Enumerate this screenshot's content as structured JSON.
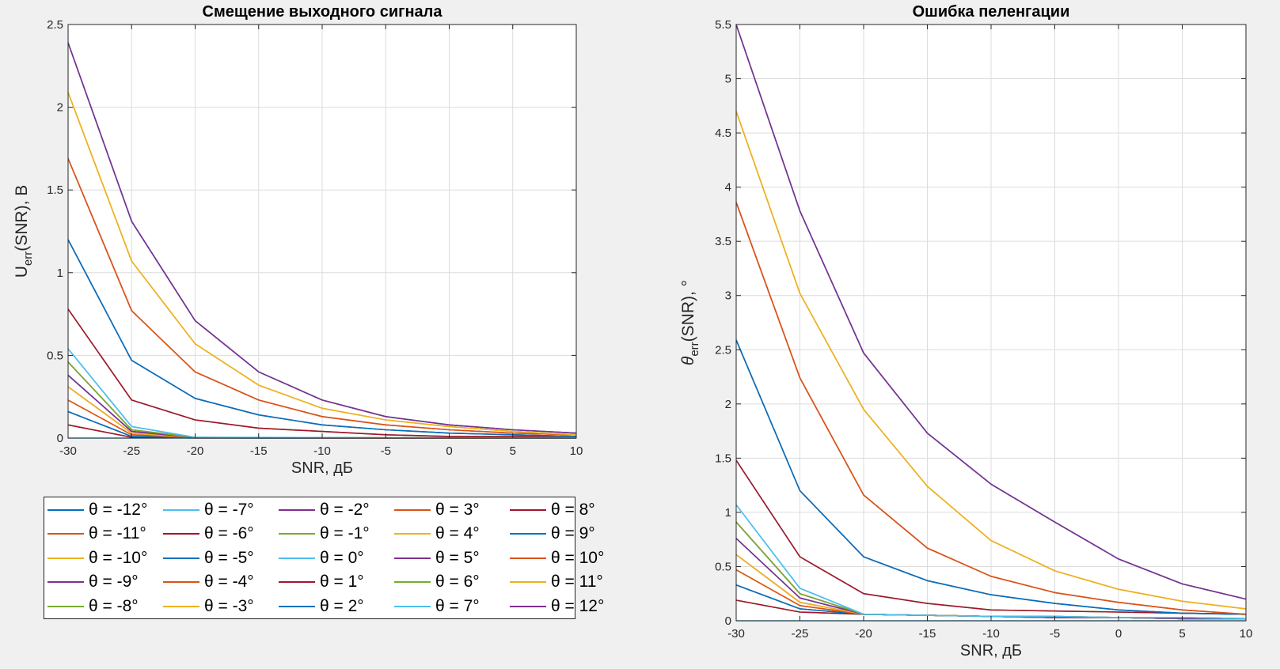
{
  "figure": {
    "series_labels": [
      "θ = -12°",
      "θ = -11°",
      "θ = -10°",
      "θ = -9°",
      "θ = -8°",
      "θ = -7°",
      "θ = -6°",
      "θ = -5°",
      "θ = -4°",
      "θ = -3°",
      "θ = -2°",
      "θ = -1°",
      "θ = 0°",
      "θ = 1°",
      "θ = 2°",
      "θ = 3°",
      "θ = 4°",
      "θ = 5°",
      "θ = 6°",
      "θ = 7°",
      "θ = 8°",
      "θ = 9°",
      "θ = 10°",
      "θ = 11°",
      "θ = 12°"
    ],
    "series_colors": [
      "#0072BD",
      "#D95319",
      "#EDB120",
      "#7E2F8E",
      "#77AC30",
      "#4DBEEE",
      "#A2142F",
      "#0072BD",
      "#D95319",
      "#EDB120",
      "#7E2F8E",
      "#77AC30",
      "#4DBEEE",
      "#A2142F",
      "#0072BD",
      "#D95319",
      "#EDB120",
      "#7E2F8E",
      "#77AC30",
      "#4DBEEE",
      "#A2142F",
      "#0072BD",
      "#D95319",
      "#EDB120",
      "#7E2F8E"
    ]
  },
  "chart_data": [
    {
      "type": "line",
      "title": "Смещение выходного сигнала",
      "xlabel": "SNR, дБ",
      "ylabel_main": "U",
      "ylabel_sub": "err",
      "ylabel_rest": "(SNR), В",
      "x": [
        -30,
        -25,
        -20,
        -15,
        -10,
        -5,
        0,
        5,
        10
      ],
      "xlim": [
        -30,
        10
      ],
      "ylim": [
        0,
        2.5
      ],
      "xticks": [
        "-30",
        "-25",
        "-20",
        "-15",
        "-10",
        "-5",
        "0",
        "5",
        "10"
      ],
      "yticks": [
        "0",
        "0.5",
        "1",
        "1.5",
        "2",
        "2.5"
      ],
      "grid": true,
      "series": [
        {
          "name": "θ = -12°",
          "values": [
            2.39,
            1.31,
            0.71,
            0.4,
            0.23,
            0.13,
            0.08,
            0.05,
            0.03
          ]
        },
        {
          "name": "θ = -11°",
          "values": [
            1.69,
            0.77,
            0.4,
            0.23,
            0.13,
            0.08,
            0.05,
            0.03,
            0.02
          ]
        },
        {
          "name": "θ = -10°",
          "values": [
            2.09,
            1.07,
            0.57,
            0.32,
            0.18,
            0.11,
            0.07,
            0.04,
            0.02
          ]
        },
        {
          "name": "θ = -9°",
          "values": [
            1.2,
            0.47,
            0.24,
            0.14,
            0.08,
            0.05,
            0.03,
            0.02,
            0.01
          ]
        },
        {
          "name": "θ = -8°",
          "values": [
            0.78,
            0.23,
            0.11,
            0.06,
            0.04,
            0.02,
            0.01,
            0.01,
            0.01
          ]
        },
        {
          "name": "θ = -7°",
          "values": [
            0.54,
            0.07,
            0.005,
            0.004,
            0.003,
            0.002,
            0.002,
            0.001,
            0.001
          ]
        },
        {
          "name": "θ = -6°",
          "values": [
            0.46,
            0.05,
            0.004,
            0.003,
            0.002,
            0.002,
            0.001,
            0.001,
            0.001
          ]
        },
        {
          "name": "θ = -5°",
          "values": [
            0.38,
            0.04,
            0.003,
            0.003,
            0.002,
            0.001,
            0.001,
            0.001,
            0.001
          ]
        },
        {
          "name": "θ = -4°",
          "values": [
            0.31,
            0.03,
            0.003,
            0.002,
            0.002,
            0.001,
            0.001,
            0.001,
            0.001
          ]
        },
        {
          "name": "θ = -3°",
          "values": [
            0.23,
            0.02,
            0.002,
            0.002,
            0.001,
            0.001,
            0.001,
            0.001,
            0.001
          ]
        },
        {
          "name": "θ = -2°",
          "values": [
            0.16,
            0.01,
            0.002,
            0.001,
            0.001,
            0.001,
            0.001,
            0.001,
            0.001
          ]
        },
        {
          "name": "θ = -1°",
          "values": [
            0.08,
            0.005,
            0.001,
            0.001,
            0.001,
            0.001,
            0.001,
            0.001,
            0.001
          ]
        },
        {
          "name": "θ = 0°",
          "values": [
            0,
            0,
            0,
            0,
            0,
            0,
            0,
            0,
            0
          ]
        },
        {
          "name": "θ = 1°",
          "values": [
            0.08,
            0.005,
            0.001,
            0.001,
            0.001,
            0.001,
            0.001,
            0.001,
            0.001
          ]
        },
        {
          "name": "θ = 2°",
          "values": [
            0.16,
            0.01,
            0.002,
            0.001,
            0.001,
            0.001,
            0.001,
            0.001,
            0.001
          ]
        },
        {
          "name": "θ = 3°",
          "values": [
            0.23,
            0.02,
            0.002,
            0.002,
            0.001,
            0.001,
            0.001,
            0.001,
            0.001
          ]
        },
        {
          "name": "θ = 4°",
          "values": [
            0.31,
            0.03,
            0.003,
            0.002,
            0.002,
            0.001,
            0.001,
            0.001,
            0.001
          ]
        },
        {
          "name": "θ = 5°",
          "values": [
            0.38,
            0.04,
            0.003,
            0.003,
            0.002,
            0.001,
            0.001,
            0.001,
            0.001
          ]
        },
        {
          "name": "θ = 6°",
          "values": [
            0.46,
            0.05,
            0.004,
            0.003,
            0.002,
            0.002,
            0.001,
            0.001,
            0.001
          ]
        },
        {
          "name": "θ = 7°",
          "values": [
            0.54,
            0.07,
            0.005,
            0.004,
            0.003,
            0.002,
            0.002,
            0.001,
            0.001
          ]
        },
        {
          "name": "θ = 8°",
          "values": [
            0.78,
            0.23,
            0.11,
            0.06,
            0.04,
            0.02,
            0.01,
            0.01,
            0.01
          ]
        },
        {
          "name": "θ = 9°",
          "values": [
            1.2,
            0.47,
            0.24,
            0.14,
            0.08,
            0.05,
            0.03,
            0.02,
            0.01
          ]
        },
        {
          "name": "θ = 10°",
          "values": [
            1.69,
            0.77,
            0.4,
            0.23,
            0.13,
            0.08,
            0.05,
            0.03,
            0.02
          ]
        },
        {
          "name": "θ = 11°",
          "values": [
            2.09,
            1.07,
            0.57,
            0.32,
            0.18,
            0.11,
            0.07,
            0.04,
            0.02
          ]
        },
        {
          "name": "θ = 12°",
          "values": [
            2.39,
            1.31,
            0.71,
            0.4,
            0.23,
            0.13,
            0.08,
            0.05,
            0.03
          ]
        }
      ]
    },
    {
      "type": "line",
      "title": "Ошибка пеленгации",
      "xlabel": "SNR, дБ",
      "ylabel_main": "θ",
      "ylabel_sub": "err",
      "ylabel_rest": "(SNR), °",
      "x": [
        -30,
        -25,
        -20,
        -15,
        -10,
        -5,
        0,
        5,
        10
      ],
      "xlim": [
        -30,
        10
      ],
      "ylim": [
        0,
        5.5
      ],
      "xticks": [
        "-30",
        "-25",
        "-20",
        "-15",
        "-10",
        "-5",
        "0",
        "5",
        "10"
      ],
      "yticks": [
        "0",
        "0.5",
        "1",
        "1.5",
        "2",
        "2.5",
        "3",
        "3.5",
        "4",
        "4.5",
        "5",
        "5.5"
      ],
      "grid": true,
      "series": [
        {
          "name": "θ = -12°",
          "values": [
            5.5,
            3.78,
            2.47,
            1.73,
            1.26,
            0.91,
            0.57,
            0.34,
            0.2
          ]
        },
        {
          "name": "θ = -11°",
          "values": [
            3.86,
            2.24,
            1.16,
            0.67,
            0.41,
            0.26,
            0.17,
            0.1,
            0.06
          ]
        },
        {
          "name": "θ = -10°",
          "values": [
            4.7,
            3.02,
            1.95,
            1.24,
            0.74,
            0.46,
            0.29,
            0.18,
            0.11
          ]
        },
        {
          "name": "θ = -9°",
          "values": [
            2.59,
            1.2,
            0.59,
            0.37,
            0.24,
            0.16,
            0.1,
            0.07,
            0.06
          ]
        },
        {
          "name": "θ = -8°",
          "values": [
            1.48,
            0.59,
            0.25,
            0.16,
            0.1,
            0.09,
            0.08,
            0.07,
            0.06
          ]
        },
        {
          "name": "θ = -7°",
          "values": [
            1.07,
            0.3,
            0.06,
            0.05,
            0.04,
            0.04,
            0.03,
            0.03,
            0.02
          ]
        },
        {
          "name": "θ = -6°",
          "values": [
            0.91,
            0.25,
            0.06,
            0.05,
            0.04,
            0.04,
            0.03,
            0.03,
            0.02
          ]
        },
        {
          "name": "θ = -5°",
          "values": [
            0.76,
            0.21,
            0.06,
            0.05,
            0.04,
            0.03,
            0.03,
            0.02,
            0.02
          ]
        },
        {
          "name": "θ = -4°",
          "values": [
            0.61,
            0.17,
            0.06,
            0.05,
            0.04,
            0.03,
            0.03,
            0.02,
            0.02
          ]
        },
        {
          "name": "θ = -3°",
          "values": [
            0.47,
            0.14,
            0.06,
            0.05,
            0.04,
            0.03,
            0.03,
            0.02,
            0.02
          ]
        },
        {
          "name": "θ = -2°",
          "values": [
            0.33,
            0.11,
            0.06,
            0.05,
            0.04,
            0.03,
            0.03,
            0.02,
            0.02
          ]
        },
        {
          "name": "θ = -1°",
          "values": [
            0.19,
            0.08,
            0.06,
            0.05,
            0.04,
            0.03,
            0.03,
            0.02,
            0.02
          ]
        },
        {
          "name": "θ = 0°",
          "values": [
            0,
            0,
            0,
            0,
            0,
            0,
            0,
            0,
            0
          ]
        },
        {
          "name": "θ = 1°",
          "values": [
            0.19,
            0.08,
            0.06,
            0.05,
            0.04,
            0.03,
            0.03,
            0.02,
            0.02
          ]
        },
        {
          "name": "θ = 2°",
          "values": [
            0.33,
            0.11,
            0.06,
            0.05,
            0.04,
            0.03,
            0.03,
            0.02,
            0.02
          ]
        },
        {
          "name": "θ = 3°",
          "values": [
            0.47,
            0.14,
            0.06,
            0.05,
            0.04,
            0.03,
            0.03,
            0.02,
            0.02
          ]
        },
        {
          "name": "θ = 4°",
          "values": [
            0.61,
            0.17,
            0.06,
            0.05,
            0.04,
            0.03,
            0.03,
            0.02,
            0.02
          ]
        },
        {
          "name": "θ = 5°",
          "values": [
            0.76,
            0.21,
            0.06,
            0.05,
            0.04,
            0.03,
            0.03,
            0.02,
            0.02
          ]
        },
        {
          "name": "θ = 6°",
          "values": [
            0.91,
            0.25,
            0.06,
            0.05,
            0.04,
            0.04,
            0.03,
            0.03,
            0.02
          ]
        },
        {
          "name": "θ = 7°",
          "values": [
            1.07,
            0.3,
            0.06,
            0.05,
            0.04,
            0.04,
            0.03,
            0.03,
            0.02
          ]
        },
        {
          "name": "θ = 8°",
          "values": [
            1.48,
            0.59,
            0.25,
            0.16,
            0.1,
            0.09,
            0.08,
            0.07,
            0.06
          ]
        },
        {
          "name": "θ = 9°",
          "values": [
            2.59,
            1.2,
            0.59,
            0.37,
            0.24,
            0.16,
            0.1,
            0.07,
            0.06
          ]
        },
        {
          "name": "θ = 10°",
          "values": [
            3.86,
            2.24,
            1.16,
            0.67,
            0.41,
            0.26,
            0.17,
            0.1,
            0.06
          ]
        },
        {
          "name": "θ = 11°",
          "values": [
            4.7,
            3.02,
            1.95,
            1.24,
            0.74,
            0.46,
            0.29,
            0.18,
            0.11
          ]
        },
        {
          "name": "θ = 12°",
          "values": [
            5.5,
            3.78,
            2.47,
            1.73,
            1.26,
            0.91,
            0.57,
            0.34,
            0.2
          ]
        }
      ]
    }
  ]
}
